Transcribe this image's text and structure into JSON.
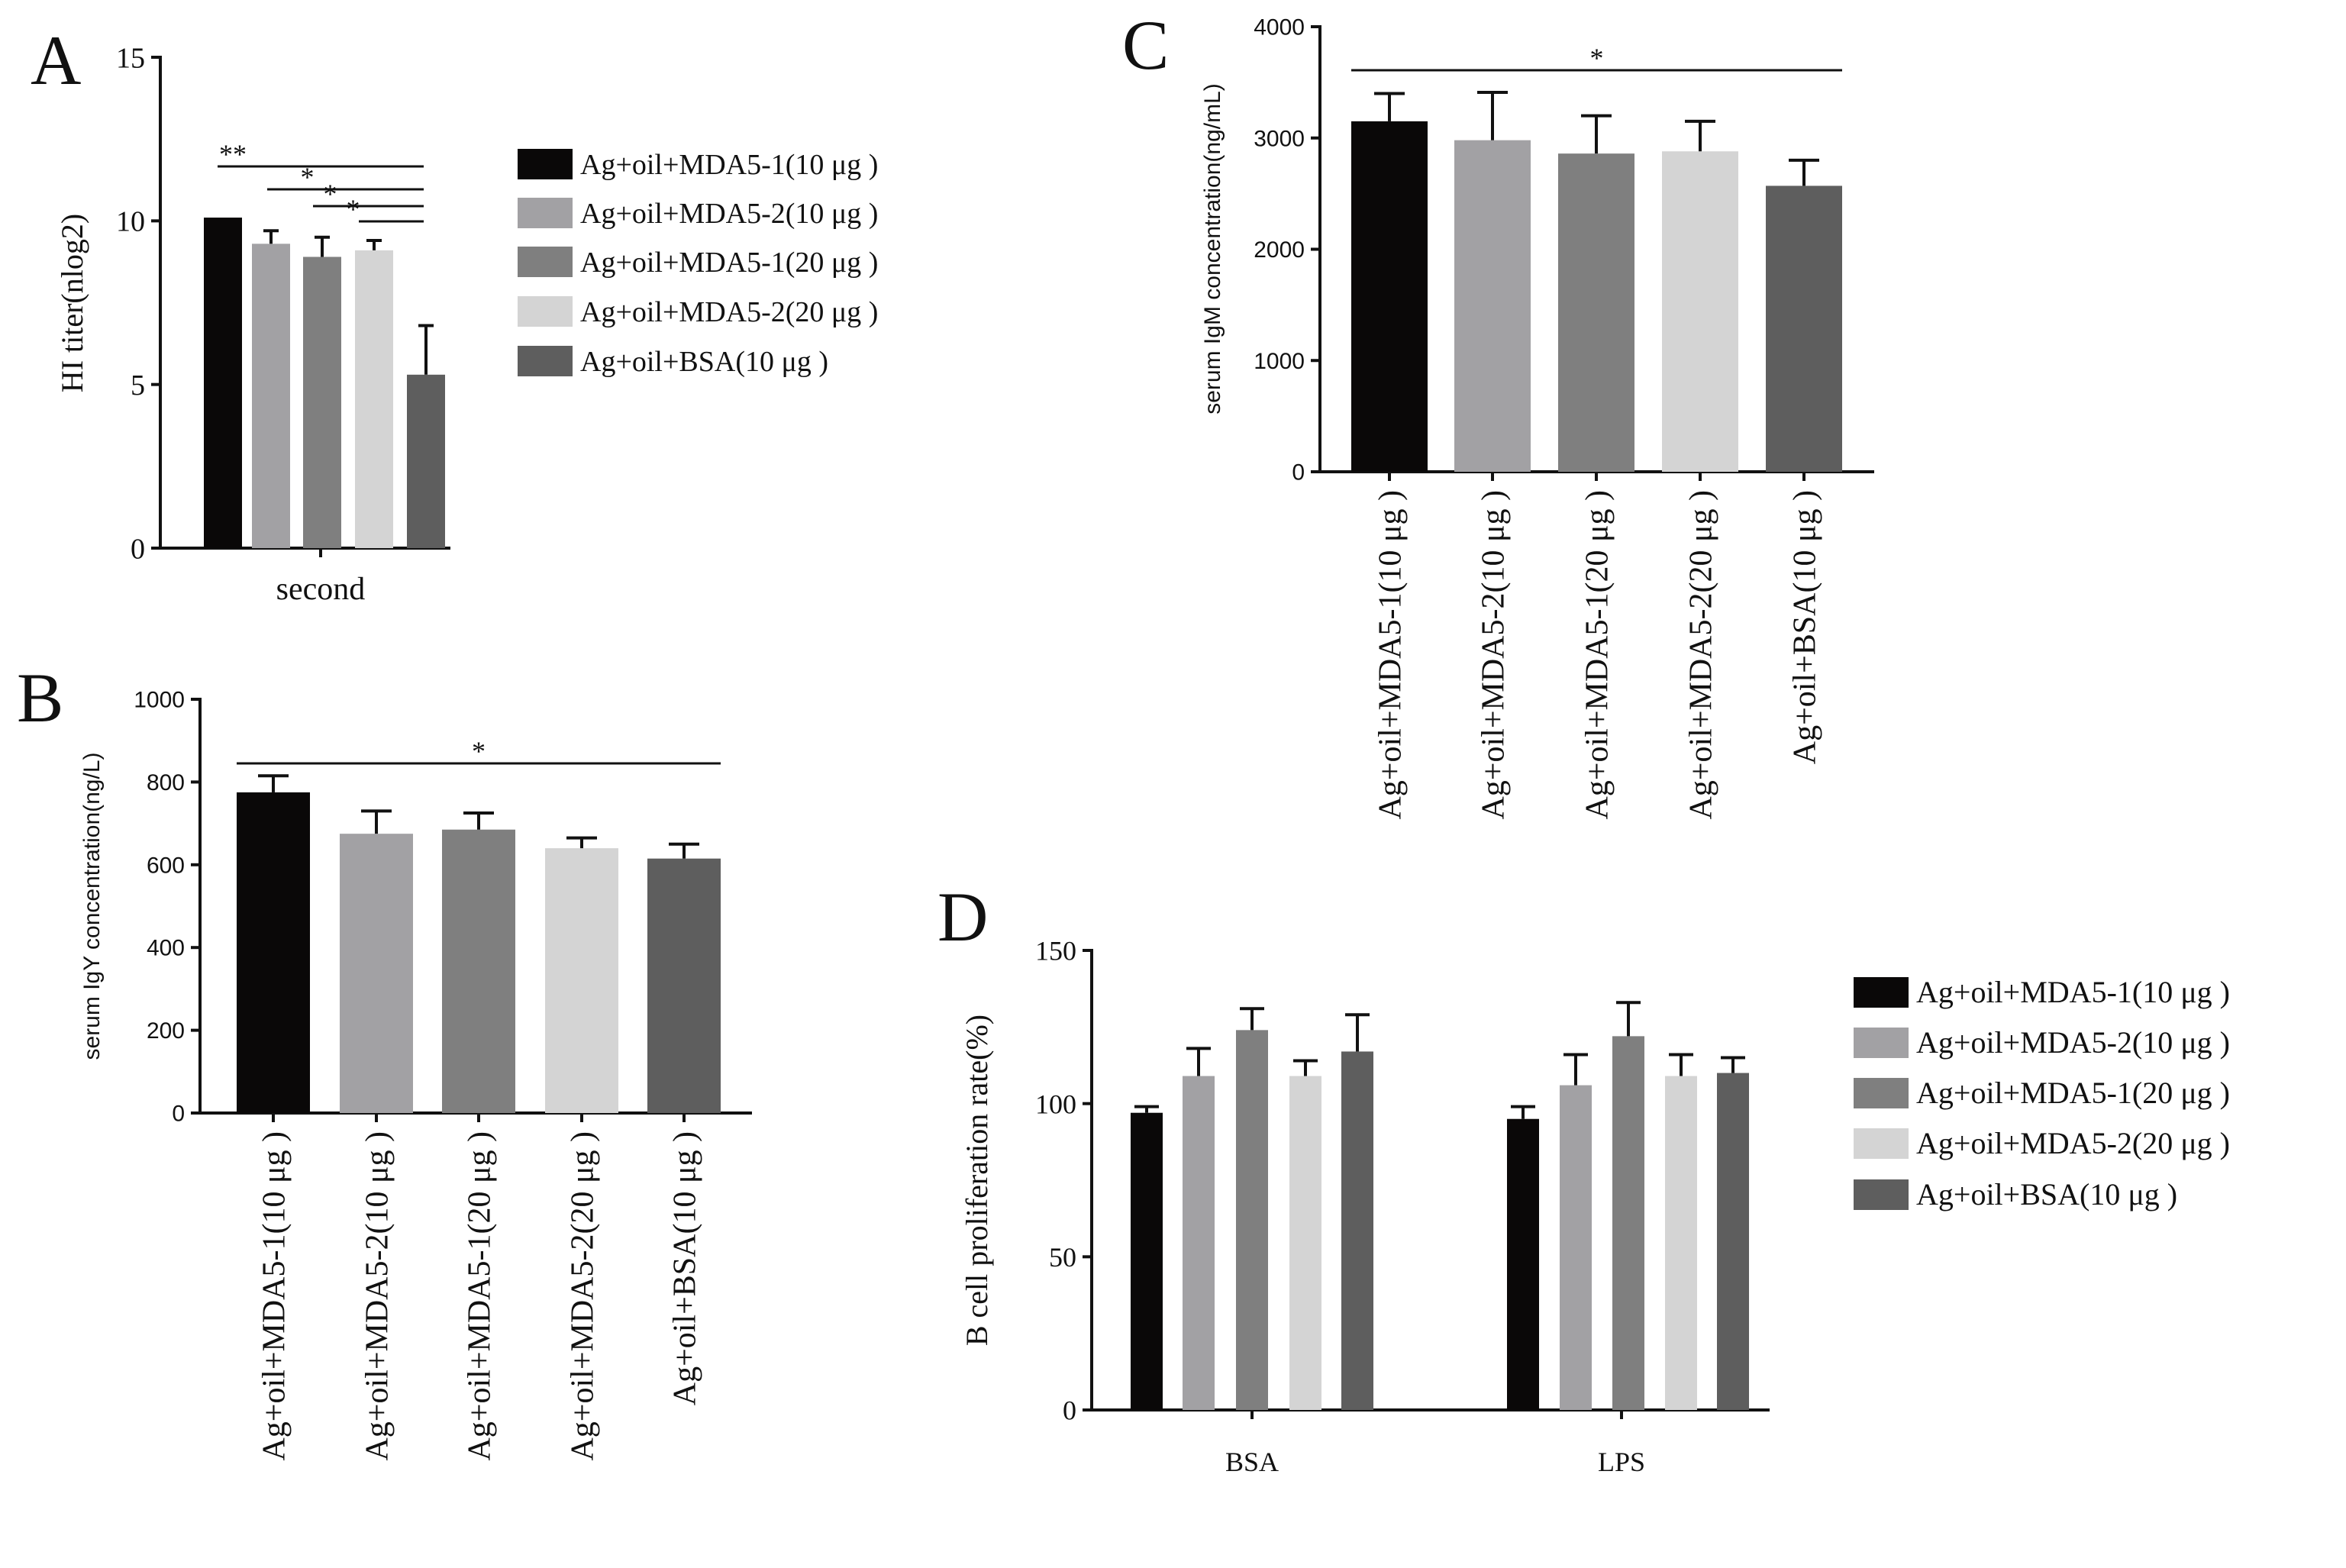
{
  "colors": {
    "series": [
      "#0a0808",
      "#a2a1a4",
      "#7f7f7f",
      "#d4d4d4",
      "#5e5e5e"
    ],
    "axis": "#111111"
  },
  "chart_data": [
    {
      "panel": "A",
      "type": "bar",
      "ylabel": "HI titer(nlog2)",
      "xlabel": "second",
      "ylim": [
        0,
        15
      ],
      "yticks": [
        0,
        5,
        10,
        15
      ],
      "categories": [
        "second"
      ],
      "series": [
        {
          "name": "Ag+oil+MDA5-1(10 μg )",
          "values": [
            10.1
          ],
          "errors": [
            0
          ]
        },
        {
          "name": "Ag+oil+MDA5-2(10 μg )",
          "values": [
            9.3
          ],
          "errors": [
            0.4
          ]
        },
        {
          "name": "Ag+oil+MDA5-1(20 μg )",
          "values": [
            8.9
          ],
          "errors": [
            0.6
          ]
        },
        {
          "name": "Ag+oil+MDA5-2(20 μg )",
          "values": [
            9.1
          ],
          "errors": [
            0.3
          ]
        },
        {
          "name": "Ag+oil+BSA(10 μg )",
          "values": [
            5.3
          ],
          "errors": [
            1.5
          ]
        }
      ],
      "significance": [
        {
          "from": 0,
          "to": 4,
          "label": "**"
        },
        {
          "from": 1,
          "to": 4,
          "label": "*"
        },
        {
          "from": 2,
          "to": 4,
          "label": "*"
        },
        {
          "from": 3,
          "to": 4,
          "label": "*"
        }
      ]
    },
    {
      "panel": "B",
      "type": "bar",
      "ylabel": "serum IgY concentration(ng/L)",
      "ylim": [
        0,
        1000
      ],
      "yticks": [
        0,
        200,
        400,
        600,
        800,
        1000
      ],
      "categories": [
        "Ag+oil+MDA5-1(10 μg )",
        "Ag+oil+MDA5-2(10 μg )",
        "Ag+oil+MDA5-1(20 μg )",
        "Ag+oil+MDA5-2(20 μg )",
        "Ag+oil+BSA(10 μg )"
      ],
      "values": [
        775,
        675,
        685,
        640,
        615
      ],
      "errors": [
        40,
        55,
        40,
        25,
        35
      ],
      "significance": [
        {
          "from": 0,
          "to": 4,
          "label": "*"
        }
      ]
    },
    {
      "panel": "C",
      "type": "bar",
      "ylabel": "serum IgM concentration(ng/mL)",
      "ylim": [
        0,
        4000
      ],
      "yticks": [
        0,
        1000,
        2000,
        3000,
        4000
      ],
      "categories": [
        "Ag+oil+MDA5-1(10 μg )",
        "Ag+oil+MDA5-2(10 μg )",
        "Ag+oil+MDA5-1(20 μg )",
        "Ag+oil+MDA5-2(20 μg )",
        "Ag+oil+BSA(10 μg )"
      ],
      "values": [
        3150,
        2980,
        2860,
        2880,
        2570
      ],
      "errors": [
        250,
        430,
        340,
        270,
        230
      ],
      "significance": [
        {
          "from": 0,
          "to": 4,
          "label": "*"
        }
      ]
    },
    {
      "panel": "D",
      "type": "bar",
      "ylabel": "B cell proliferation rate(%)",
      "ylim": [
        0,
        150
      ],
      "yticks": [
        0,
        50,
        100,
        150
      ],
      "categories": [
        "BSA",
        "LPS"
      ],
      "series": [
        {
          "name": "Ag+oil+MDA5-1(10 μg )",
          "values": [
            97,
            95
          ],
          "errors": [
            2,
            4
          ]
        },
        {
          "name": "Ag+oil+MDA5-2(10 μg )",
          "values": [
            109,
            106
          ],
          "errors": [
            9,
            10
          ]
        },
        {
          "name": "Ag+oil+MDA5-1(20 μg )",
          "values": [
            124,
            122
          ],
          "errors": [
            7,
            11
          ]
        },
        {
          "name": "Ag+oil+MDA5-2(20 μg )",
          "values": [
            109,
            109
          ],
          "errors": [
            5,
            7
          ]
        },
        {
          "name": "Ag+oil+BSA(10 μg )",
          "values": [
            117,
            110
          ],
          "errors": [
            12,
            5
          ]
        }
      ]
    }
  ]
}
